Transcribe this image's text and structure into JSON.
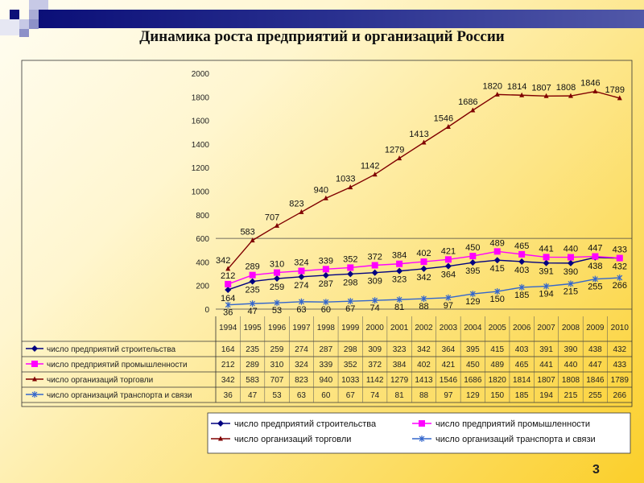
{
  "slide": {
    "title": "Динамика роста предприятий и организаций России",
    "page_number": "3"
  },
  "chart_data": {
    "type": "line",
    "title": "",
    "xlabel": "",
    "ylabel": "",
    "ylim": [
      0,
      2000
    ],
    "yticks": [
      "0",
      "200",
      "400",
      "600",
      "800",
      "1000",
      "1200",
      "1400",
      "1600",
      "1800",
      "2000"
    ],
    "categories": [
      "1994",
      "1995",
      "1996",
      "1997",
      "1998",
      "1999",
      "2000",
      "2001",
      "2002",
      "2003",
      "2004",
      "2005",
      "2006",
      "2007",
      "2008",
      "2009",
      "2010"
    ],
    "legend_position": "bottom",
    "series": [
      {
        "name": "число предприятий строительства",
        "color": "#000080",
        "marker": "diamond",
        "values": [
          164,
          235,
          259,
          274,
          287,
          298,
          309,
          323,
          342,
          364,
          395,
          415,
          403,
          391,
          390,
          438,
          432
        ]
      },
      {
        "name": "число предприятий промышленности",
        "color": "#ff00ff",
        "marker": "square",
        "values": [
          212,
          289,
          310,
          324,
          339,
          352,
          372,
          384,
          402,
          421,
          450,
          489,
          465,
          441,
          440,
          447,
          433
        ]
      },
      {
        "name": "число организаций торговли",
        "color": "#800000",
        "marker": "triangle",
        "values": [
          342,
          583,
          707,
          823,
          940,
          1033,
          1142,
          1279,
          1413,
          1546,
          1686,
          1820,
          1814,
          1807,
          1808,
          1846,
          1789
        ]
      },
      {
        "name": "число организаций транспорта и связи",
        "color": "#3366cc",
        "marker": "x",
        "values": [
          36,
          47,
          53,
          63,
          60,
          67,
          74,
          81,
          88,
          97,
          129,
          150,
          185,
          194,
          215,
          255,
          266
        ]
      }
    ]
  }
}
